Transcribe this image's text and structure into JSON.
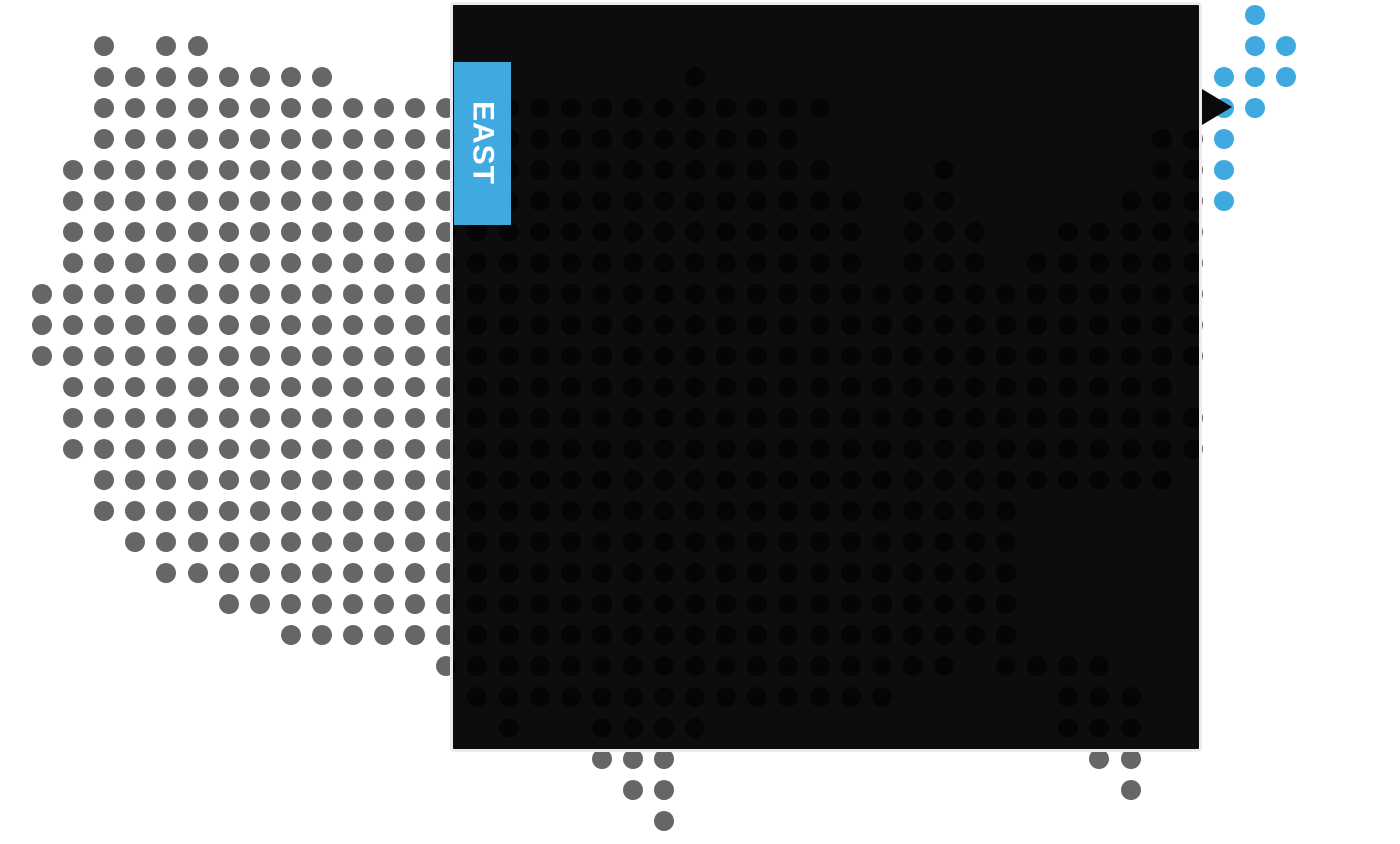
{
  "map": {
    "dot_color": "#666666",
    "highlight_color": "#3fa9e0",
    "background": "#ffffff"
  },
  "panel": {
    "region_label": "EAST",
    "tab_color": "#3fa9e0",
    "background": "#0c0c0c"
  }
}
